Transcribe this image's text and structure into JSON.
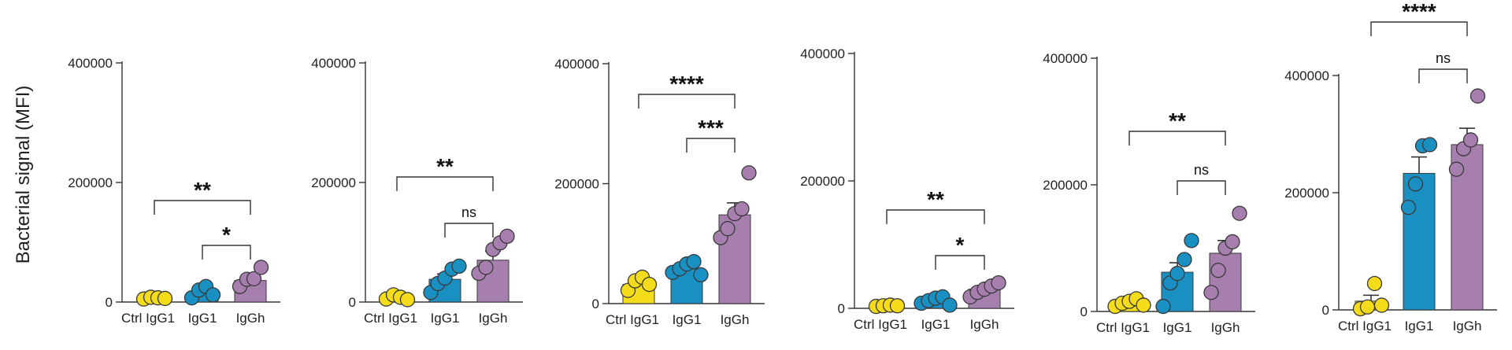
{
  "ylabel": "Bacterial signal (MFI)",
  "colors": {
    "ctrl": "#f4dc1a",
    "igg1": "#1a8fc2",
    "iggh": "#a67fae",
    "axis": "#333333",
    "point_edge": "#3a3a3a"
  },
  "chart_data": [
    {
      "type": "bar",
      "categories": [
        "Ctrl IgG1",
        "IgG1",
        "IgGh"
      ],
      "ylim": [
        0,
        400000
      ],
      "yticks": [
        "0",
        "200000",
        "400000"
      ],
      "means": [
        7000,
        15000,
        36000
      ],
      "errors": [
        1500,
        4000,
        7000
      ],
      "points": [
        [
          5000,
          8000,
          7000,
          6000
        ],
        [
          7000,
          20000,
          26000,
          12000
        ],
        [
          26000,
          38000,
          39000,
          58000
        ]
      ],
      "annotations": [
        {
          "from": 0,
          "to": 2,
          "label": "**"
        },
        {
          "from": 1,
          "to": 2,
          "label": "*"
        }
      ]
    },
    {
      "type": "bar",
      "categories": [
        "Ctrl IgG1",
        "IgG1",
        "IgGh"
      ],
      "ylim": [
        0,
        400000
      ],
      "yticks": [
        "0",
        "200000",
        "400000"
      ],
      "means": [
        8000,
        38000,
        70000
      ],
      "errors": [
        2000,
        9000,
        15000
      ],
      "points": [
        [
          5000,
          12000,
          8000,
          4000
        ],
        [
          16000,
          31000,
          40000,
          55000,
          60000
        ],
        [
          48000,
          58000,
          88000,
          99000,
          110000
        ]
      ],
      "annotations": [
        {
          "from": 0,
          "to": 2,
          "label": "**"
        },
        {
          "from": 1,
          "to": 2,
          "label": "ns"
        }
      ]
    },
    {
      "type": "bar",
      "categories": [
        "Ctrl IgG1",
        "IgG1",
        "IgGh"
      ],
      "ylim": [
        0,
        400000
      ],
      "yticks": [
        "0",
        "200000",
        "400000"
      ],
      "means": [
        32000,
        58000,
        148000
      ],
      "errors": [
        6000,
        6000,
        20000
      ],
      "points": [
        [
          22000,
          38000,
          44000,
          32000
        ],
        [
          52000,
          58000,
          66000,
          70000,
          48000
        ],
        [
          110000,
          125000,
          150000,
          158000,
          218000
        ]
      ],
      "annotations": [
        {
          "from": 0,
          "to": 2,
          "label": "****"
        },
        {
          "from": 1,
          "to": 2,
          "label": "***"
        }
      ]
    },
    {
      "type": "bar",
      "categories": [
        "Ctrl IgG1",
        "IgG1",
        "IgGh"
      ],
      "ylim": [
        0,
        400000
      ],
      "yticks": [
        "0",
        "200000",
        "400000"
      ],
      "means": [
        4000,
        15000,
        30000
      ],
      "errors": [
        1000,
        2500,
        5000
      ],
      "points": [
        [
          3000,
          4000,
          5000,
          4000
        ],
        [
          8000,
          12000,
          16000,
          18000,
          5000
        ],
        [
          18000,
          25000,
          30000,
          35000,
          40000
        ]
      ],
      "annotations": [
        {
          "from": 0,
          "to": 2,
          "label": "**"
        },
        {
          "from": 1,
          "to": 2,
          "label": "*"
        }
      ]
    },
    {
      "type": "bar",
      "categories": [
        "Ctrl IgG1",
        "IgG1",
        "IgGh"
      ],
      "ylim": [
        0,
        400000
      ],
      "yticks": [
        "0",
        "200000",
        "400000"
      ],
      "means": [
        14000,
        62000,
        92000
      ],
      "errors": [
        3000,
        15000,
        20000
      ],
      "points": [
        [
          8000,
          13000,
          16000,
          20000,
          10000
        ],
        [
          8000,
          45000,
          60000,
          82000,
          112000
        ],
        [
          30000,
          65000,
          100000,
          110000,
          155000
        ]
      ],
      "annotations": [
        {
          "from": 0,
          "to": 2,
          "label": "**"
        },
        {
          "from": 1,
          "to": 2,
          "label": "ns"
        }
      ]
    },
    {
      "type": "bar",
      "categories": [
        "Ctrl IgG1",
        "IgG1",
        "IgGh"
      ],
      "ylim": [
        0,
        400000
      ],
      "yticks": [
        "0",
        "200000",
        "400000"
      ],
      "means": [
        15000,
        233000,
        282000
      ],
      "errors": [
        10000,
        28000,
        28000
      ],
      "points": [
        [
          2000,
          5000,
          45000,
          8000
        ],
        [
          175000,
          215000,
          280000,
          282000
        ],
        [
          240000,
          275000,
          290000,
          365000
        ]
      ],
      "annotations": [
        {
          "from": 0,
          "to": 2,
          "label": "****"
        },
        {
          "from": 1,
          "to": 2,
          "label": "ns"
        }
      ]
    }
  ]
}
